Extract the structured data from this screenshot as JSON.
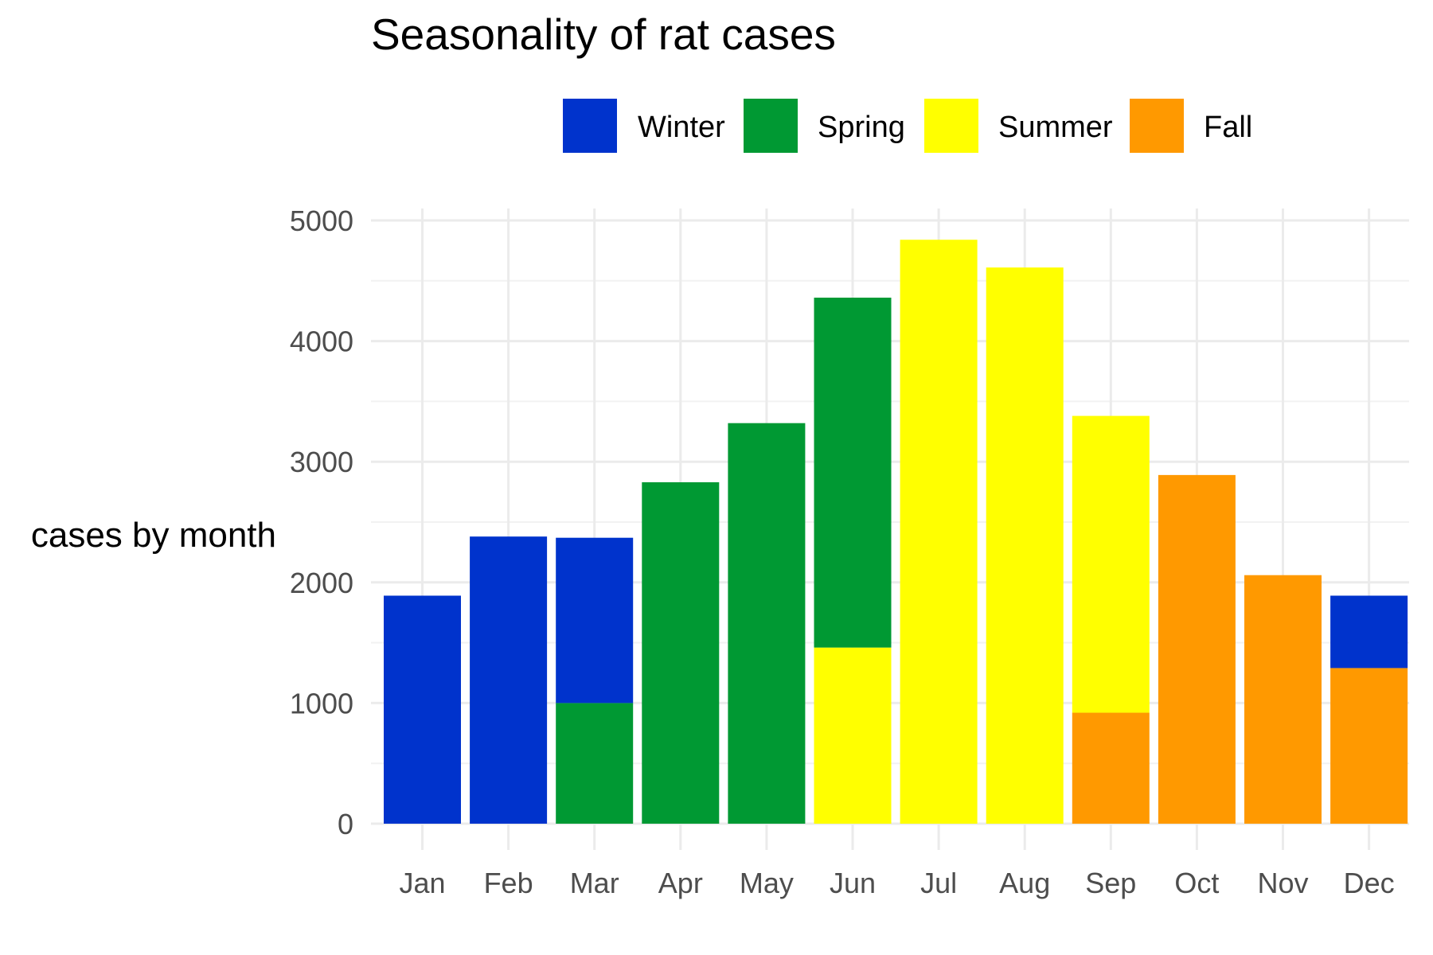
{
  "chart_data": {
    "type": "bar",
    "stacked": true,
    "title": "Seasonality of rat cases",
    "xlabel": "",
    "ylabel": "cases by month",
    "ylim": [
      0,
      5000
    ],
    "yticks": [
      0,
      1000,
      2000,
      3000,
      4000,
      5000
    ],
    "grid": true,
    "legend_position": "top",
    "categories": [
      "Jan",
      "Feb",
      "Mar",
      "Apr",
      "May",
      "Jun",
      "Jul",
      "Aug",
      "Sep",
      "Oct",
      "Nov",
      "Dec"
    ],
    "series": [
      {
        "name": "Winter",
        "color": "#0033cc",
        "values": [
          1890,
          2380,
          1370,
          0,
          0,
          0,
          0,
          0,
          0,
          0,
          0,
          600
        ]
      },
      {
        "name": "Spring",
        "color": "#009933",
        "values": [
          0,
          0,
          1000,
          2830,
          3320,
          2900,
          0,
          0,
          0,
          0,
          0,
          0
        ]
      },
      {
        "name": "Summer",
        "color": "#ffff00",
        "values": [
          0,
          0,
          0,
          0,
          0,
          1460,
          4840,
          4610,
          2460,
          0,
          0,
          0
        ]
      },
      {
        "name": "Fall",
        "color": "#ff9900",
        "values": [
          0,
          0,
          0,
          0,
          0,
          0,
          0,
          0,
          920,
          2890,
          2060,
          1290
        ]
      }
    ],
    "stack_order_bottom_to_top": [
      "Fall",
      "Summer",
      "Spring",
      "Winter"
    ]
  }
}
